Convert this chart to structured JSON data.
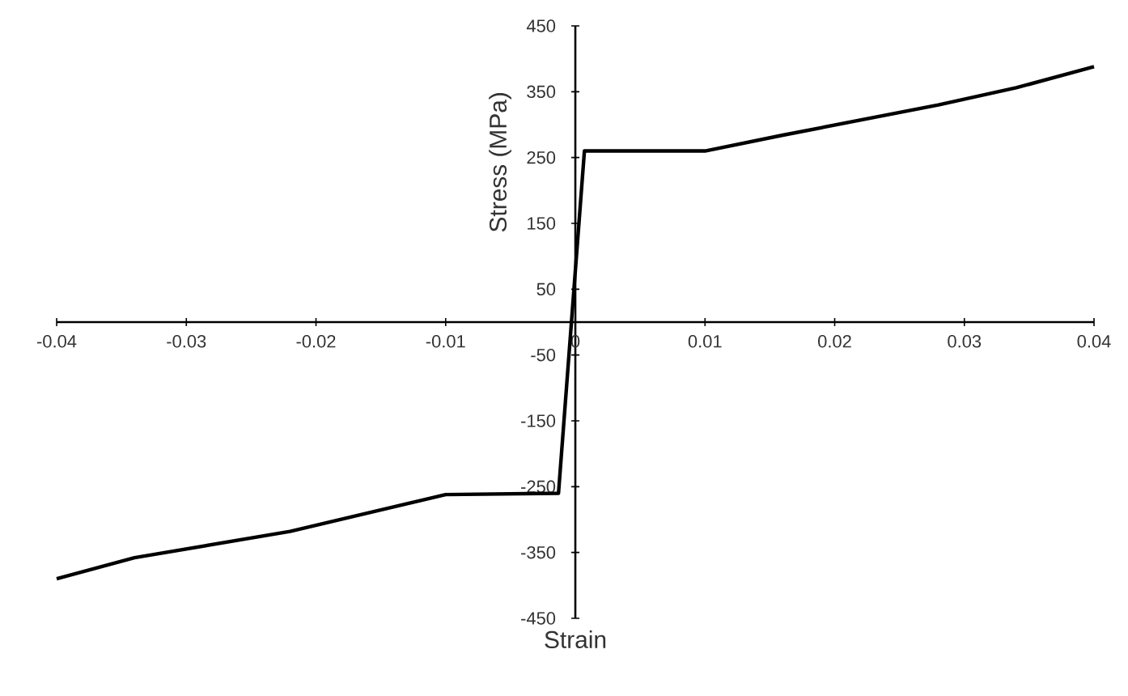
{
  "chart_data": {
    "type": "line",
    "xlabel": "Strain",
    "ylabel": "Stress (MPa)",
    "x": [
      -0.04,
      -0.034,
      -0.022,
      -0.016,
      -0.01,
      -0.0013,
      0.0007,
      0.01,
      0.016,
      0.028,
      0.034,
      0.04
    ],
    "series": [
      {
        "color": "#000000",
        "values": [
          -390,
          -358,
          -318,
          -290,
          -262,
          -260,
          260,
          260,
          284,
          330,
          356,
          388
        ]
      }
    ],
    "xlim": [
      -0.04,
      0.04
    ],
    "ylim": [
      -450,
      450
    ],
    "xticks": [
      -0.04,
      -0.03,
      -0.02,
      -0.01,
      0,
      0.01,
      0.02,
      0.03,
      0.04
    ],
    "yticks": [
      -450,
      -350,
      -250,
      -150,
      -50,
      50,
      150,
      250,
      350,
      450
    ],
    "grid": false,
    "marker": "none",
    "line_style": "solid"
  }
}
